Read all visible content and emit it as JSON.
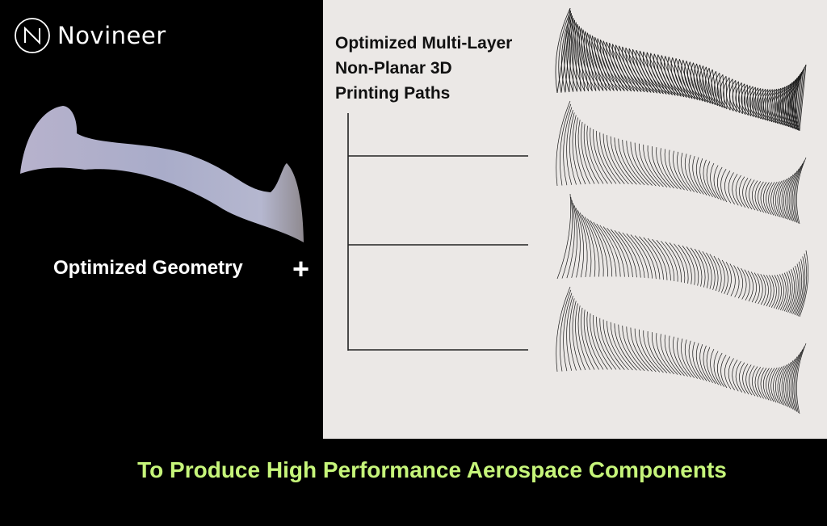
{
  "brand": {
    "name": "Novineer",
    "logo_icon": "n-circle-logo"
  },
  "left_panel": {
    "label": "Optimized Geometry",
    "operator": "+"
  },
  "right_panel": {
    "title_lines": [
      "Optimized Multi-Layer",
      "Non-Planar 3D",
      "Printing Paths"
    ],
    "layer_count": 4
  },
  "footer": {
    "tagline": "To Produce High Performance Aerospace Components"
  },
  "colors": {
    "accent_green": "#c6f57a",
    "panel_bg": "#ebe8e6",
    "background": "#000000"
  }
}
